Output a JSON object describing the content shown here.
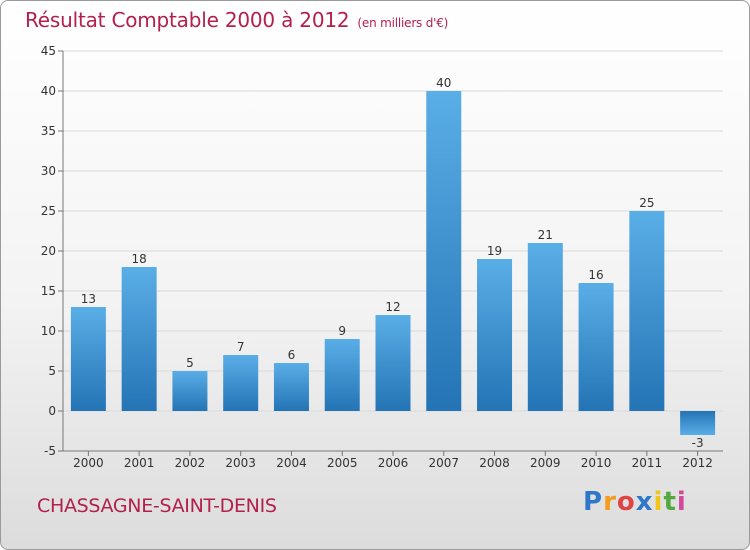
{
  "header": {
    "title": "Résultat Comptable 2000 à 2012",
    "subtitle": "(en milliers d'€)"
  },
  "footer": {
    "commune": "CHASSAGNE-SAINT-DENIS",
    "logo_parts": [
      "P",
      "r",
      "o",
      "x",
      "i",
      "t",
      "i"
    ]
  },
  "colors": {
    "title": "#b3204e",
    "bar_top": "#5aaee6",
    "bar_bottom": "#2474b5"
  },
  "chart_data": {
    "type": "bar",
    "title": "Résultat Comptable 2000 à 2012",
    "subtitle": "(en milliers d'€)",
    "xlabel": "",
    "ylabel": "",
    "categories": [
      "2000",
      "2001",
      "2002",
      "2003",
      "2004",
      "2005",
      "2006",
      "2007",
      "2008",
      "2009",
      "2010",
      "2011",
      "2012"
    ],
    "values": [
      13,
      18,
      5,
      7,
      6,
      9,
      12,
      40,
      19,
      21,
      16,
      25,
      -3
    ],
    "ylim": [
      -5,
      45
    ],
    "yticks": [
      -5,
      0,
      5,
      10,
      15,
      20,
      25,
      30,
      35,
      40,
      45
    ],
    "grid": true
  }
}
